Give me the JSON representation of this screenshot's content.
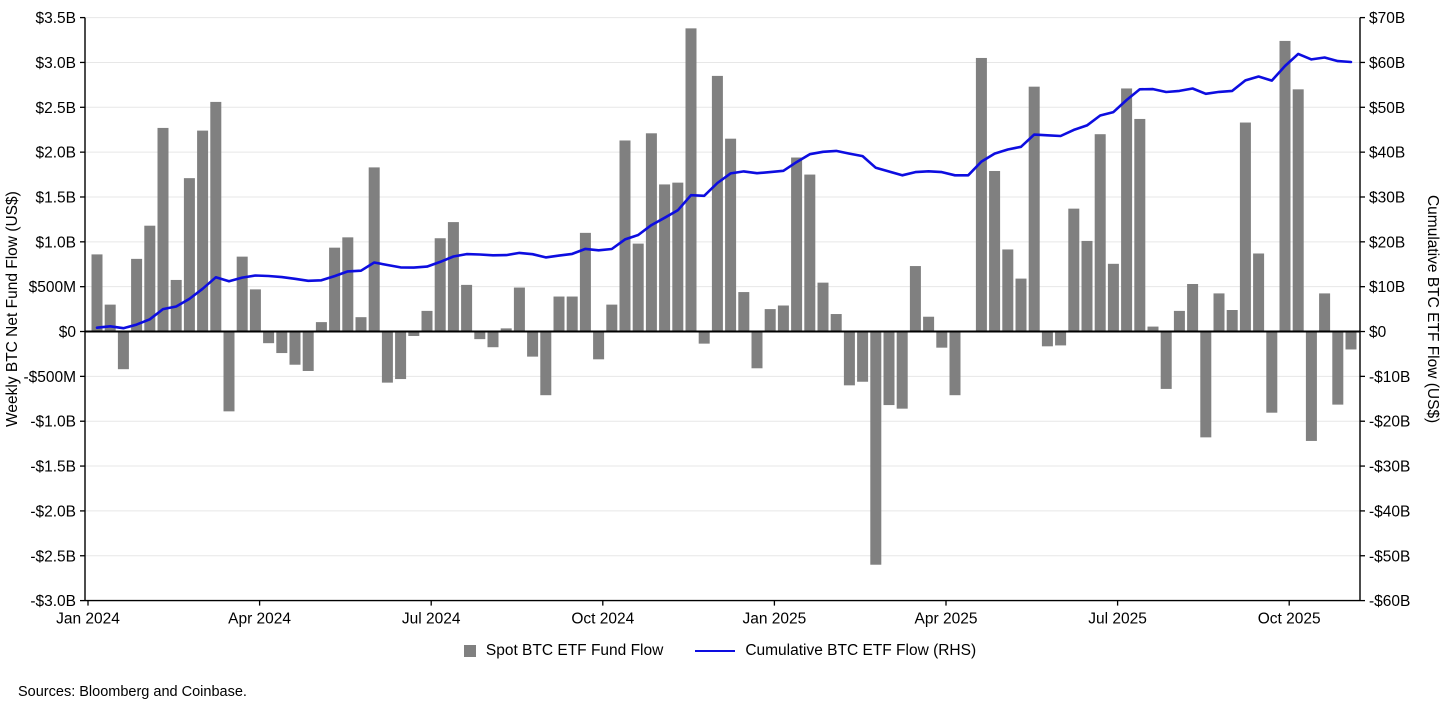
{
  "chart_data": {
    "type": "bar",
    "title": "",
    "x_tick_labels": [
      "Jan 2024",
      "Apr 2024",
      "Jul 2024",
      "Oct 2024",
      "Jan 2025",
      "Apr 2025",
      "Jul 2025",
      "Oct 2025"
    ],
    "weeks_per_x_tick": 13,
    "left_axis": {
      "label": "Weekly BTC Net Fund Flow (US$)",
      "tick_labels": [
        "$3.5B",
        "$3.0B",
        "$2.5B",
        "$2.0B",
        "$1.5B",
        "$1.0B",
        "$500M",
        "$0",
        "-$500M",
        "-$1.0B",
        "-$1.5B",
        "-$2.0B",
        "-$2.5B",
        "-$3.0B"
      ],
      "tick_values_musd": [
        3500,
        3000,
        2500,
        2000,
        1500,
        1000,
        500,
        0,
        -500,
        -1000,
        -1500,
        -2000,
        -2500,
        -3000
      ],
      "range_musd": [
        -3000,
        3500
      ]
    },
    "right_axis": {
      "label": "Cumulative BTC ETF Flow (US$)",
      "tick_labels": [
        "$70B",
        "$60B",
        "$50B",
        "$40B",
        "$30B",
        "$20B",
        "$10B",
        "$0",
        "-$10B",
        "-$20B",
        "-$30B",
        "-$40B",
        "-$50B",
        "-$60B"
      ],
      "tick_values_busd": [
        70,
        60,
        50,
        40,
        30,
        20,
        10,
        0,
        -10,
        -20,
        -30,
        -40,
        -50,
        -60
      ],
      "range_busd": [
        -60,
        70
      ]
    },
    "grid": "horizontal-light-gray",
    "legend_position": "bottom-center",
    "series": [
      {
        "name": "Spot BTC ETF Fund Flow",
        "type": "bar",
        "axis": "left",
        "color": "#808080",
        "values_musd": [
          860,
          300,
          -420,
          810,
          1180,
          2270,
          575,
          1710,
          2240,
          2560,
          -890,
          835,
          470,
          -130,
          -240,
          -370,
          -440,
          105,
          935,
          1050,
          160,
          1830,
          -570,
          -530,
          -50,
          230,
          1040,
          1220,
          520,
          -85,
          -175,
          35,
          490,
          -280,
          -710,
          390,
          390,
          1100,
          -310,
          300,
          2130,
          980,
          2210,
          1640,
          1660,
          3380,
          -135,
          2850,
          2150,
          440,
          -410,
          250,
          290,
          1940,
          1750,
          545,
          195,
          -600,
          -560,
          -2600,
          -820,
          -860,
          730,
          165,
          -180,
          -710,
          0,
          3050,
          1790,
          915,
          590,
          2730,
          -165,
          -155,
          1370,
          1010,
          2200,
          755,
          2710,
          2370,
          55,
          -640,
          230,
          530,
          -1180,
          425,
          240,
          2330,
          870,
          -905,
          3240,
          2700,
          -1220,
          425,
          -815,
          -200
        ]
      },
      {
        "name": "Cumulative BTC ETF Flow (RHS)",
        "type": "line",
        "axis": "right",
        "color": "#0d0de0",
        "definition": "running cumulative sum of weekly flows, in US$B, plotted on right axis",
        "end_value_busd": 60.1
      }
    ]
  },
  "legend": {
    "items": [
      {
        "label": "Spot BTC ETF Fund Flow",
        "swatch": "gray-square"
      },
      {
        "label": "Cumulative BTC ETF Flow (RHS)",
        "swatch": "blue-line"
      }
    ]
  },
  "footer": {
    "sources": "Sources: Bloomberg and Coinbase."
  }
}
